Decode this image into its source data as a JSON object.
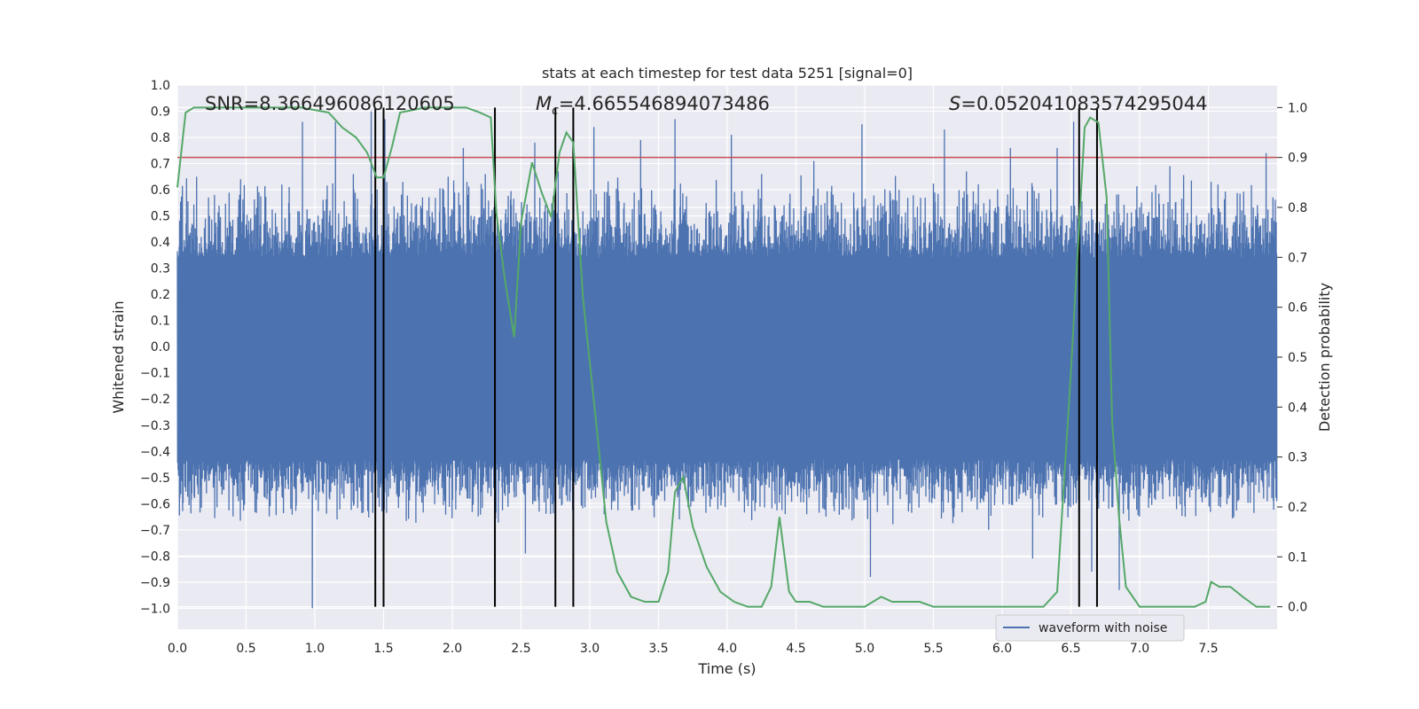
{
  "chart_data": {
    "type": "line",
    "title": "stats at each timestep for test data 5251 [signal=0]",
    "xlabel": "Time (s)",
    "ylabel": "Whitened strain",
    "y2label": "Detection probability",
    "xlim": [
      0.0,
      8.0
    ],
    "ylim": [
      -1.08,
      1.0
    ],
    "y2lim": [
      -0.045,
      1.045
    ],
    "x_ticks": [
      "0.0",
      "0.5",
      "1.0",
      "1.5",
      "2.0",
      "2.5",
      "3.0",
      "3.5",
      "4.0",
      "4.5",
      "5.0",
      "5.5",
      "6.0",
      "6.5",
      "7.0",
      "7.5"
    ],
    "y_ticks": [
      "1.0",
      "0.9",
      "0.8",
      "0.7",
      "0.6",
      "0.5",
      "0.4",
      "0.3",
      "0.2",
      "0.1",
      "0.0",
      "−0.1",
      "−0.2",
      "−0.3",
      "−0.4",
      "−0.5",
      "−0.6",
      "−0.7",
      "−0.8",
      "−0.9",
      "−1.0"
    ],
    "y2_ticks": [
      "1.0",
      "0.9",
      "0.8",
      "0.7",
      "0.6",
      "0.5",
      "0.4",
      "0.3",
      "0.2",
      "0.1",
      "0.0"
    ],
    "annotations": {
      "snr": "SNR=8.366496086120605",
      "mc_symbol": "M",
      "mc_sub": "c",
      "mc_value": "=4.665546894073486",
      "s_symbol": "S",
      "s_value": "=0.052041083574295044"
    },
    "threshold": {
      "value": 0.9,
      "axis": "right",
      "color": "#c44e52"
    },
    "vertical_lines": [
      1.44,
      1.5,
      2.31,
      2.75,
      2.88,
      6.56,
      6.69
    ],
    "series": [
      {
        "name": "waveform with noise",
        "axis": "left",
        "color": "#4c72b0",
        "kind": "noise",
        "duration": 8.0,
        "samples": 2400,
        "base_upper": 0.34,
        "base_lower": -0.43,
        "spikes": [
          [
            0.14,
            0.65
          ],
          [
            0.27,
            0.58
          ],
          [
            0.46,
            0.64
          ],
          [
            0.76,
            0.62
          ],
          [
            0.91,
            0.86
          ],
          [
            0.98,
            -1.0
          ],
          [
            1.15,
            0.86
          ],
          [
            1.28,
            0.66
          ],
          [
            1.41,
            0.9
          ],
          [
            1.51,
            0.87
          ],
          [
            1.64,
            0.63
          ],
          [
            1.97,
            0.65
          ],
          [
            2.08,
            0.76
          ],
          [
            2.24,
            0.66
          ],
          [
            2.53,
            -0.79
          ],
          [
            2.6,
            0.78
          ],
          [
            2.77,
            0.67
          ],
          [
            3.03,
            0.84
          ],
          [
            3.37,
            0.79
          ],
          [
            3.62,
            0.87
          ],
          [
            3.65,
            -0.66
          ],
          [
            4.03,
            0.81
          ],
          [
            4.25,
            0.66
          ],
          [
            4.42,
            -0.64
          ],
          [
            4.63,
            0.71
          ],
          [
            4.98,
            0.85
          ],
          [
            5.04,
            -0.88
          ],
          [
            5.25,
            0.6
          ],
          [
            5.58,
            0.83
          ],
          [
            5.74,
            0.67
          ],
          [
            5.9,
            -0.7
          ],
          [
            6.06,
            0.76
          ],
          [
            6.22,
            -0.81
          ],
          [
            6.4,
            0.76
          ],
          [
            6.52,
            0.86
          ],
          [
            6.65,
            -0.86
          ],
          [
            6.85,
            -0.93
          ],
          [
            7.22,
            0.69
          ],
          [
            7.33,
            -0.65
          ],
          [
            7.57,
            0.62
          ],
          [
            7.92,
            0.74
          ]
        ]
      },
      {
        "name": "detection probability",
        "axis": "right",
        "color": "#55a868",
        "x": [
          0.0,
          0.06,
          0.12,
          0.3,
          0.6,
          0.9,
          1.1,
          1.2,
          1.3,
          1.38,
          1.45,
          1.5,
          1.56,
          1.62,
          1.8,
          2.1,
          2.2,
          2.28,
          2.32,
          2.38,
          2.45,
          2.5,
          2.58,
          2.65,
          2.72,
          2.78,
          2.83,
          2.88,
          2.95,
          3.05,
          3.12,
          3.2,
          3.3,
          3.4,
          3.5,
          3.57,
          3.62,
          3.68,
          3.75,
          3.85,
          3.95,
          4.05,
          4.15,
          4.25,
          4.32,
          4.38,
          4.45,
          4.5,
          4.6,
          4.7,
          4.9,
          5.0,
          5.12,
          5.2,
          5.3,
          5.4,
          5.5,
          5.7,
          5.9,
          6.1,
          6.3,
          6.4,
          6.5,
          6.6,
          6.64,
          6.7,
          6.76,
          6.8,
          6.85,
          6.9,
          7.0,
          7.1,
          7.2,
          7.4,
          7.48,
          7.52,
          7.58,
          7.66,
          7.75,
          7.85,
          7.95
        ],
        "y": [
          0.84,
          0.99,
          1.0,
          1.0,
          1.0,
          1.0,
          0.99,
          0.96,
          0.94,
          0.91,
          0.86,
          0.86,
          0.92,
          0.99,
          1.0,
          1.0,
          0.99,
          0.98,
          0.79,
          0.66,
          0.54,
          0.77,
          0.89,
          0.83,
          0.78,
          0.91,
          0.95,
          0.93,
          0.62,
          0.36,
          0.17,
          0.07,
          0.02,
          0.01,
          0.01,
          0.07,
          0.23,
          0.26,
          0.16,
          0.08,
          0.03,
          0.01,
          0.0,
          0.0,
          0.04,
          0.18,
          0.03,
          0.01,
          0.01,
          0.0,
          0.0,
          0.0,
          0.02,
          0.01,
          0.01,
          0.01,
          0.0,
          0.0,
          0.0,
          0.0,
          0.0,
          0.03,
          0.47,
          0.96,
          0.98,
          0.97,
          0.82,
          0.37,
          0.18,
          0.04,
          0.0,
          0.0,
          0.0,
          0.0,
          0.01,
          0.05,
          0.04,
          0.04,
          0.02,
          0.0,
          0.0
        ]
      }
    ],
    "legend": {
      "label": "waveform with noise",
      "placement": "lower-right"
    }
  }
}
